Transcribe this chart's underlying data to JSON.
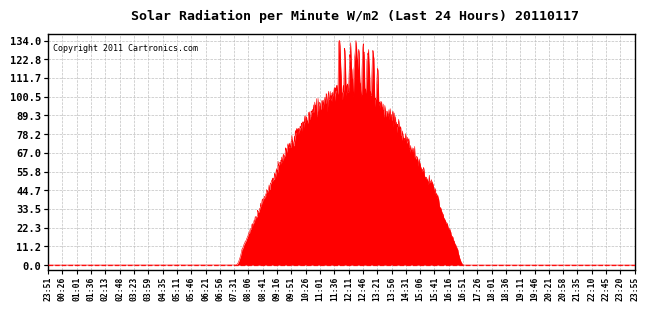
{
  "title": "Solar Radiation per Minute W/m2 (Last 24 Hours) 20110117",
  "copyright": "Copyright 2011 Cartronics.com",
  "yticks": [
    0.0,
    11.2,
    22.3,
    33.5,
    44.7,
    55.8,
    67.0,
    78.2,
    89.3,
    100.5,
    111.7,
    122.8,
    134.0
  ],
  "ymax": 134.0,
  "ymin": 0.0,
  "bar_color": "#ff0000",
  "background_color": "#ffffff",
  "grid_color": "#c0c0c0",
  "dashed_line_color": "#ff0000",
  "x_labels": [
    "23:51",
    "00:26",
    "01:01",
    "01:36",
    "02:13",
    "02:48",
    "03:23",
    "03:59",
    "04:35",
    "05:11",
    "05:46",
    "06:21",
    "06:56",
    "07:31",
    "08:06",
    "08:41",
    "09:16",
    "09:51",
    "10:26",
    "11:01",
    "11:36",
    "12:11",
    "12:46",
    "13:21",
    "13:56",
    "14:31",
    "15:06",
    "15:41",
    "16:16",
    "16:51",
    "17:26",
    "18:01",
    "18:36",
    "19:11",
    "19:46",
    "20:21",
    "20:58",
    "21:35",
    "22:10",
    "22:45",
    "23:20",
    "23:55"
  ],
  "n_points": 1440,
  "sunrise_min": 460,
  "sunset_min": 1020,
  "solar_noon_min": 740,
  "peak_value": 134.0,
  "seed": 7
}
